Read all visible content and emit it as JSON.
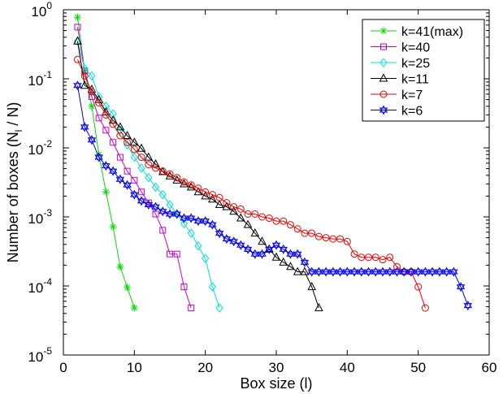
{
  "chart_data": {
    "type": "line",
    "title": "",
    "xlabel": "Box size (l)",
    "ylabel_parts": [
      "Number of boxes (N",
      "l",
      " / N)"
    ],
    "xlim": [
      0,
      60
    ],
    "ylim": [
      1e-05,
      1
    ],
    "yscale": "log",
    "grid": false,
    "legend_position": "top-right",
    "x_ticks": [
      0,
      10,
      20,
      30,
      40,
      50,
      60
    ],
    "x_tick_labels": [
      "0",
      "10",
      "20",
      "30",
      "40",
      "50",
      "60"
    ],
    "y_ticks": [
      1e-05,
      0.0001,
      0.001,
      0.01,
      0.1,
      1
    ],
    "y_tick_labels": [
      {
        "base": "10",
        "exp": "-5"
      },
      {
        "base": "10",
        "exp": "-4"
      },
      {
        "base": "10",
        "exp": "-3"
      },
      {
        "base": "10",
        "exp": "-2"
      },
      {
        "base": "10",
        "exp": "-1"
      },
      {
        "base": "10",
        "exp": "0"
      }
    ],
    "series": [
      {
        "name": "k=41(max)",
        "color": "#00dd00",
        "marker": "star",
        "x": [
          2,
          3,
          4,
          5,
          6,
          7,
          8,
          9,
          10
        ],
        "y": [
          0.78,
          0.13,
          0.04,
          0.008,
          0.0023,
          0.00072,
          0.00019,
          9.5e-05,
          4.8e-05
        ]
      },
      {
        "name": "k=40",
        "color": "#cc00cc",
        "marker": "square",
        "x": [
          2,
          3,
          4,
          5,
          6,
          7,
          8,
          9,
          10,
          11,
          12,
          13,
          14,
          15,
          16,
          17,
          18
        ],
        "y": [
          0.56,
          0.13,
          0.055,
          0.027,
          0.018,
          0.012,
          0.0073,
          0.0046,
          0.0034,
          0.0023,
          0.0016,
          0.0011,
          0.00064,
          0.00029,
          0.00029,
          9.7e-05,
          4.8e-05
        ]
      },
      {
        "name": "k=25",
        "color": "#00dddd",
        "marker": "diamond",
        "x": [
          2,
          3,
          4,
          5,
          6,
          7,
          8,
          9,
          10,
          11,
          12,
          13,
          14,
          15,
          16,
          17,
          18,
          19,
          20,
          21,
          22
        ],
        "y": [
          0.35,
          0.14,
          0.11,
          0.055,
          0.04,
          0.031,
          0.018,
          0.011,
          0.0073,
          0.0051,
          0.0037,
          0.0027,
          0.0021,
          0.0015,
          0.0011,
          0.0008,
          0.00058,
          0.00038,
          0.00025,
          9.7e-05,
          4.8e-05
        ]
      },
      {
        "name": "k=11",
        "color": "#000000",
        "marker": "triangle",
        "x": [
          2,
          3,
          4,
          5,
          6,
          7,
          8,
          9,
          10,
          11,
          12,
          13,
          14,
          15,
          16,
          17,
          18,
          19,
          20,
          21,
          22,
          23,
          24,
          25,
          26,
          27,
          28,
          29,
          30,
          31,
          32,
          33,
          34,
          35,
          36
        ],
        "y": [
          0.35,
          0.08,
          0.07,
          0.05,
          0.033,
          0.025,
          0.02,
          0.015,
          0.012,
          0.0098,
          0.0073,
          0.0058,
          0.0045,
          0.0039,
          0.0034,
          0.003,
          0.0027,
          0.0023,
          0.002,
          0.0018,
          0.0015,
          0.0014,
          0.0012,
          0.00096,
          0.00077,
          0.00058,
          0.00044,
          0.00034,
          0.00026,
          0.00022,
          0.00019,
          0.00016,
          0.00016,
          9.7e-05,
          4.8e-05
        ]
      },
      {
        "name": "k=7",
        "color": "#ee0000",
        "marker": "circle",
        "x": [
          2,
          3,
          4,
          5,
          6,
          7,
          8,
          9,
          10,
          11,
          12,
          13,
          14,
          15,
          16,
          17,
          18,
          19,
          20,
          21,
          22,
          23,
          24,
          25,
          26,
          27,
          28,
          29,
          30,
          31,
          32,
          33,
          34,
          35,
          36,
          37,
          38,
          39,
          40,
          41,
          42,
          43,
          44,
          45,
          46,
          47,
          48,
          49,
          50,
          51
        ],
        "y": [
          0.19,
          0.11,
          0.065,
          0.045,
          0.03,
          0.022,
          0.015,
          0.012,
          0.0095,
          0.0073,
          0.0057,
          0.0051,
          0.0046,
          0.0042,
          0.0037,
          0.0032,
          0.0029,
          0.0026,
          0.0023,
          0.0021,
          0.0019,
          0.0016,
          0.0014,
          0.0013,
          0.0011,
          0.0011,
          0.001,
          0.00096,
          0.00087,
          0.00087,
          0.00077,
          0.00067,
          0.00058,
          0.00058,
          0.00052,
          0.0005,
          0.00048,
          0.00048,
          0.00044,
          0.00029,
          0.00026,
          0.00026,
          0.00026,
          0.00024,
          0.00026,
          0.00019,
          0.00016,
          0.00016,
          9.7e-05,
          4.8e-05
        ]
      },
      {
        "name": "k=6",
        "color": "#0000ee",
        "marker": "hexagram",
        "x": [
          2,
          3,
          4,
          5,
          6,
          7,
          8,
          9,
          10,
          11,
          12,
          13,
          14,
          15,
          16,
          17,
          18,
          19,
          20,
          21,
          22,
          23,
          24,
          25,
          26,
          27,
          28,
          29,
          30,
          31,
          32,
          33,
          34,
          35,
          36,
          37,
          38,
          39,
          40,
          41,
          42,
          43,
          44,
          45,
          46,
          47,
          48,
          49,
          50,
          51,
          52,
          53,
          54,
          55,
          56,
          57
        ],
        "y": [
          0.08,
          0.02,
          0.013,
          0.0073,
          0.0055,
          0.0046,
          0.0035,
          0.0029,
          0.0021,
          0.0017,
          0.0015,
          0.0014,
          0.0012,
          0.0011,
          0.0011,
          0.00096,
          0.00096,
          0.00087,
          0.00087,
          0.00077,
          0.00058,
          0.00048,
          0.00044,
          0.00039,
          0.00034,
          0.00029,
          0.00029,
          0.00034,
          0.00039,
          0.00034,
          0.00029,
          0.00029,
          0.00022,
          0.00016,
          0.00016,
          0.00016,
          0.00016,
          0.00016,
          0.00016,
          0.00016,
          0.00016,
          0.00016,
          0.00016,
          0.00016,
          0.00016,
          0.00016,
          0.00016,
          0.00016,
          0.00016,
          0.00016,
          0.00016,
          0.00016,
          0.00016,
          0.00016,
          9.7e-05,
          5.2e-05
        ]
      }
    ]
  }
}
